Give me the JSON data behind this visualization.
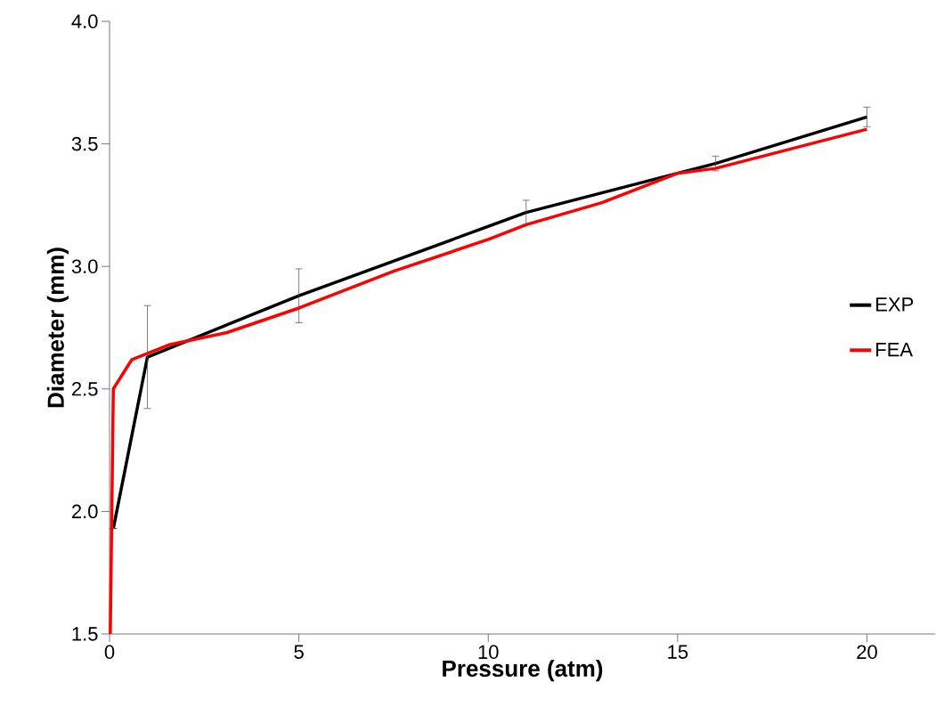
{
  "chart_data": {
    "type": "line",
    "xlabel": "Pressure (atm)",
    "ylabel": "Diameter (mm)",
    "xlim": [
      0,
      21.8
    ],
    "ylim": [
      1.5,
      4.0
    ],
    "xticks": [
      0,
      5,
      10,
      15,
      20
    ],
    "yticks": [
      {
        "value": 1.5,
        "label": "1.5"
      },
      {
        "value": 2.0,
        "label": "2.0"
      },
      {
        "value": 2.5,
        "label": "2.5"
      },
      {
        "value": 3.0,
        "label": "3.0"
      },
      {
        "value": 3.5,
        "label": "3.5"
      },
      {
        "value": 4.0,
        "label": "4.0"
      }
    ],
    "legend": "right",
    "grid": false,
    "series": [
      {
        "name": "EXP",
        "color": "#000000",
        "x": [
          0.1,
          1,
          5,
          11,
          16,
          20
        ],
        "values": [
          1.93,
          2.63,
          2.88,
          3.22,
          3.42,
          3.61
        ],
        "errors": [
          null,
          0.21,
          0.11,
          0.05,
          0.03,
          0.04
        ]
      },
      {
        "name": "FEA",
        "color": "#ff0000",
        "x": [
          0.02,
          0.1,
          0.59,
          1.57,
          3.1,
          5,
          7.5,
          10,
          11,
          13,
          15,
          16,
          20
        ],
        "values": [
          1.5,
          2.5,
          2.62,
          2.68,
          2.73,
          2.83,
          2.98,
          3.11,
          3.17,
          3.26,
          3.38,
          3.4,
          3.56
        ]
      }
    ]
  }
}
